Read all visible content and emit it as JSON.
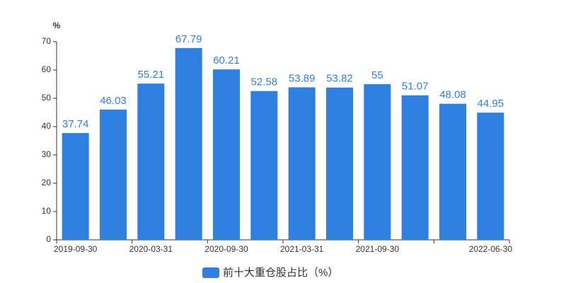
{
  "chart_data": {
    "type": "bar",
    "y_label": "%",
    "categories": [
      "2019-09-30",
      null,
      "2020-03-31",
      null,
      "2020-09-30",
      null,
      "2021-03-31",
      null,
      "2021-09-30",
      null,
      null,
      "2022-06-30"
    ],
    "series": [
      {
        "name": "前十大重仓股占比（%）",
        "color": "#2f7fe0",
        "values": [
          37.74,
          46.03,
          55.21,
          67.79,
          60.21,
          52.58,
          53.89,
          53.82,
          55,
          51.07,
          48.08,
          44.95
        ]
      }
    ],
    "ylim": [
      0,
      70
    ],
    "yticks": [
      0,
      10,
      20,
      30,
      40,
      50,
      60,
      70
    ],
    "grid": false
  }
}
